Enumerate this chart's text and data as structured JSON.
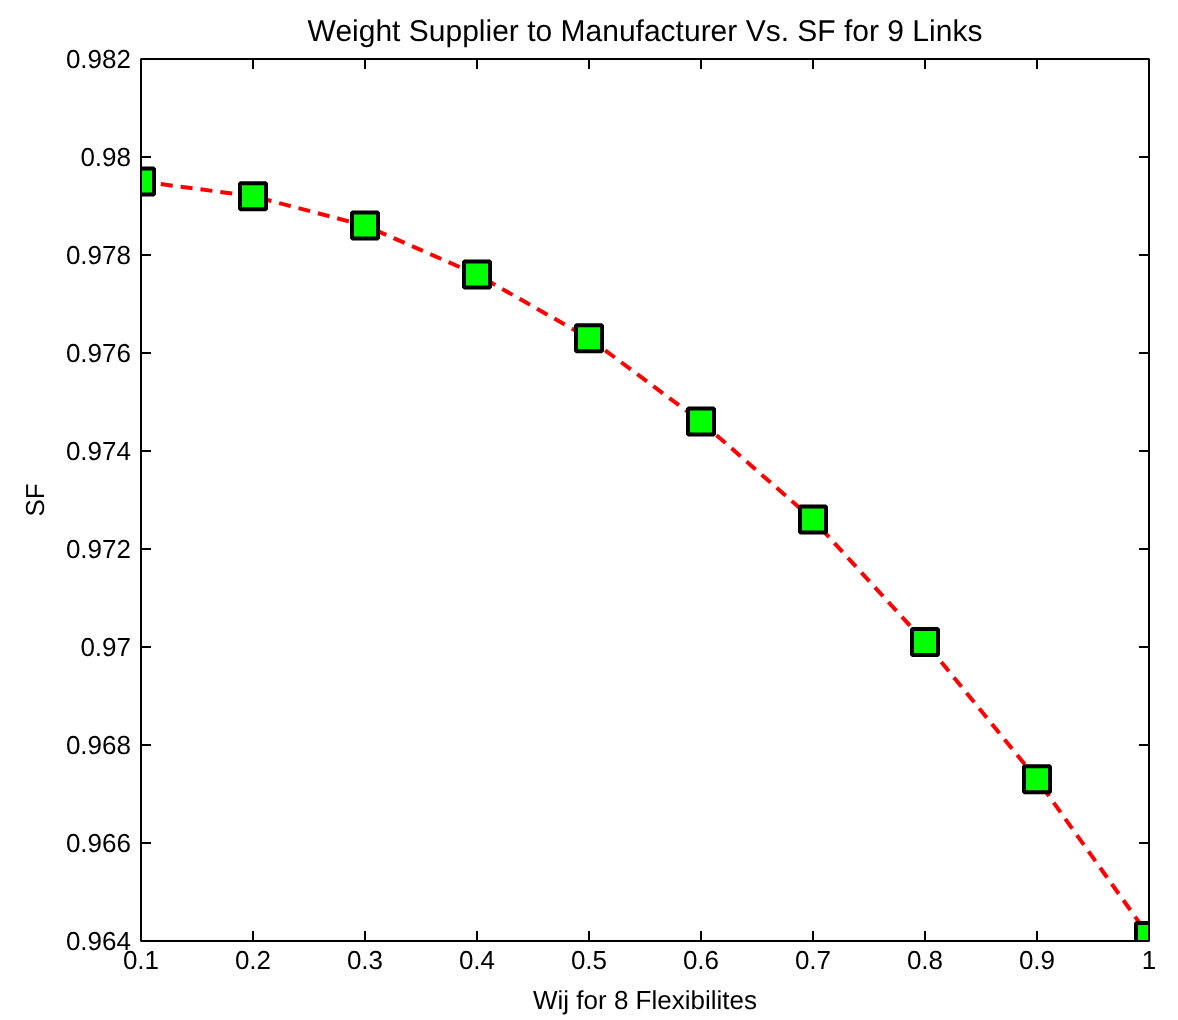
{
  "chart_data": {
    "type": "line",
    "title": "Weight Supplier to Manufacturer Vs. SF for 9 Links",
    "xlabel": "Wij for 8 Flexibilites",
    "ylabel": "SF",
    "x": [
      0.1,
      0.2,
      0.3,
      0.4,
      0.5,
      0.6,
      0.7,
      0.8,
      0.9,
      1
    ],
    "series": [
      {
        "color": "#ff0000",
        "colors": [
          "#00ff00",
          "#00ff00",
          "#00ff00",
          "#00ff00",
          "#00ff00",
          "#00ff00",
          "#00ff00",
          "#00ff00",
          "#00ff00",
          "#00ff00"
        ],
        "values": [
          0.9795,
          0.9792,
          0.9786,
          0.9776,
          0.9763,
          0.9746,
          0.9726,
          0.9701,
          0.9673,
          0.9641
        ]
      }
    ],
    "xlim": [
      0.1,
      1
    ],
    "ylim": [
      0.964,
      0.982
    ],
    "xticks": [
      0.1,
      0.2,
      0.3,
      0.4,
      0.5,
      0.6,
      0.7,
      0.8,
      0.9,
      1
    ],
    "yticks": [
      0.964,
      0.966,
      0.968,
      0.97,
      0.972,
      0.974,
      0.976,
      0.978,
      0.98,
      0.982
    ],
    "marker": "square",
    "line_style": "dashed",
    "grid": false
  }
}
